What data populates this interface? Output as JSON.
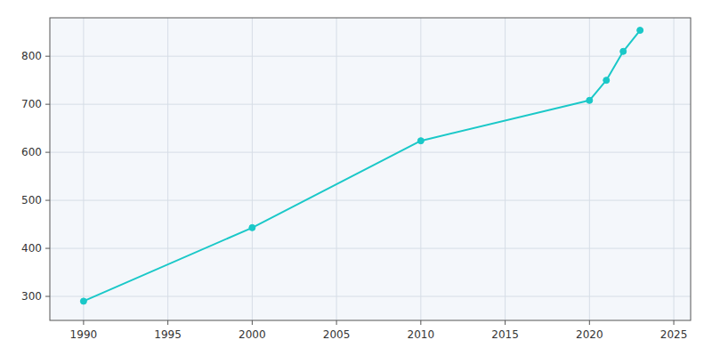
{
  "chart_data": {
    "type": "line",
    "x": [
      1990,
      2000,
      2010,
      2020,
      2021,
      2022,
      2023
    ],
    "values": [
      290,
      443,
      624,
      708,
      750,
      810,
      854
    ],
    "color": "#1ac8c8",
    "marker": "circle",
    "xlim": [
      1988,
      2026
    ],
    "ylim": [
      250,
      880
    ],
    "xticks": [
      1990,
      1995,
      2000,
      2005,
      2010,
      2015,
      2020,
      2025
    ],
    "yticks": [
      300,
      400,
      500,
      600,
      700,
      800
    ],
    "grid": true
  }
}
